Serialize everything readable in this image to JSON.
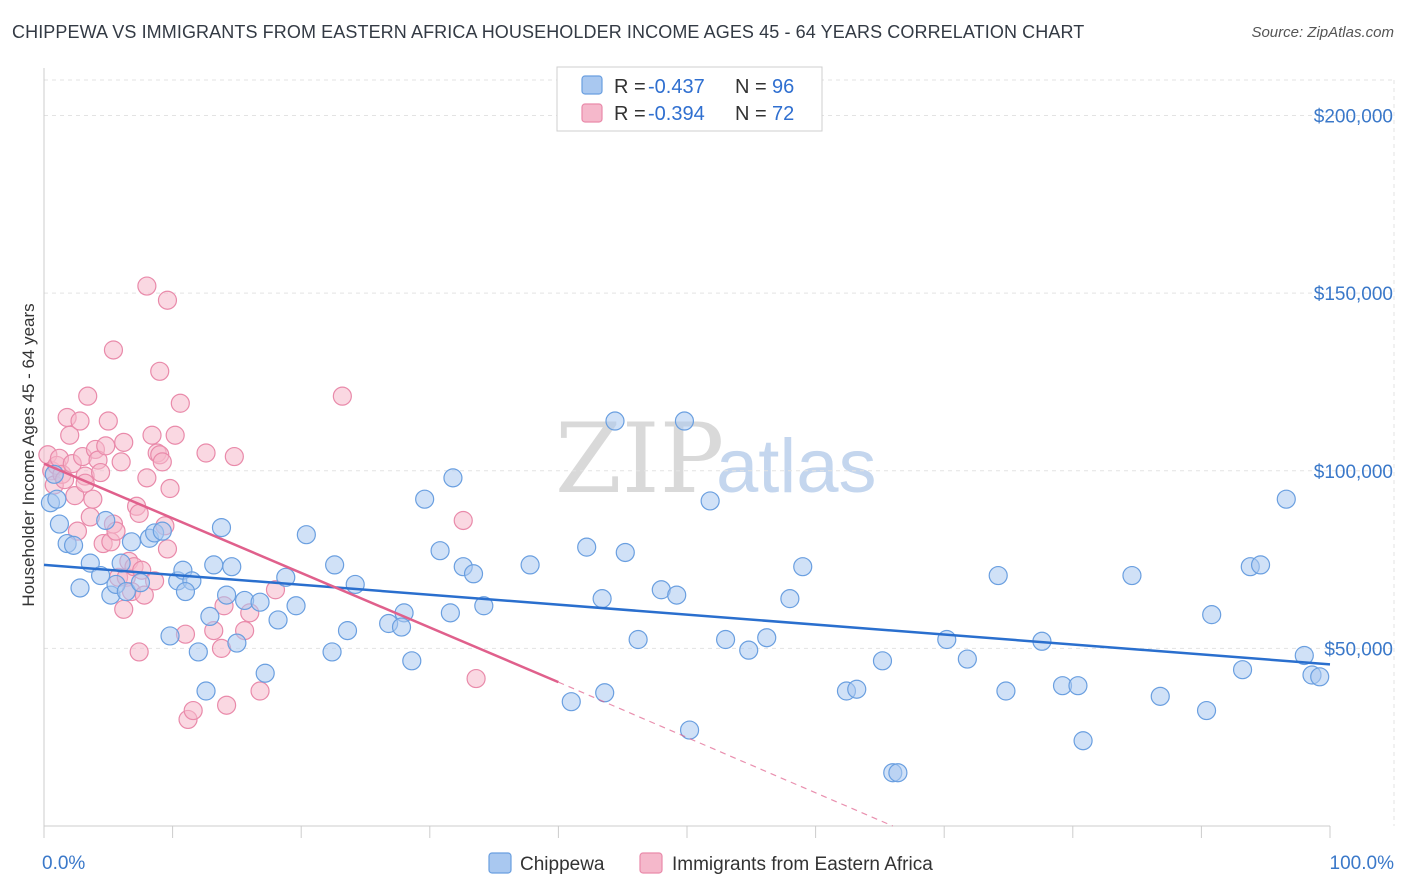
{
  "header": {
    "title": "CHIPPEWA VS IMMIGRANTS FROM EASTERN AFRICA HOUSEHOLDER INCOME AGES 45 - 64 YEARS CORRELATION CHART",
    "source": "Source: ZipAtlas.com"
  },
  "watermark": {
    "zip": "ZIP",
    "atlas": "atlas"
  },
  "legend": {
    "items": [
      {
        "r_label": "R = ",
        "r_value": "-0.437",
        "n_label": "N = ",
        "n_value": "96"
      },
      {
        "r_label": "R = ",
        "r_value": "-0.394",
        "n_label": "N = ",
        "n_value": "72"
      }
    ]
  },
  "bottom_legend": {
    "items": [
      {
        "label": "Chippewa"
      },
      {
        "label": "Immigrants from Eastern Africa"
      }
    ]
  },
  "colors": {
    "blue_fill": "#a9c8f0",
    "blue_stroke": "#6a9fe0",
    "blue_line": "#2a6fce",
    "pink_fill": "#f5b8cb",
    "pink_stroke": "#e98aaa",
    "pink_line": "#e0608c",
    "tick_text": "#3a78c9"
  },
  "chart_data": {
    "type": "scatter",
    "title": "CHIPPEWA VS IMMIGRANTS FROM EASTERN AFRICA HOUSEHOLDER INCOME AGES 45 - 64 YEARS CORRELATION CHART",
    "xlabel": "",
    "ylabel": "Householder Income Ages 45 - 64 years",
    "xlim": [
      0,
      100
    ],
    "ylim": [
      0,
      210000
    ],
    "x_tick_labels": [
      "0.0%",
      "100.0%"
    ],
    "y_ticks": [
      {
        "value": 50000,
        "label": "$50,000"
      },
      {
        "value": 100000,
        "label": "$100,000"
      },
      {
        "value": 150000,
        "label": "$150,000"
      },
      {
        "value": 200000,
        "label": "$200,000"
      }
    ],
    "grid": true,
    "legend_position": "top-center",
    "series": [
      {
        "name": "Chippewa",
        "trend": {
          "x": [
            0,
            100
          ],
          "y": [
            73500,
            45500
          ],
          "dashed_from": null
        },
        "points": [
          [
            0.5,
            91000
          ],
          [
            1.2,
            85000
          ],
          [
            1.8,
            79500
          ],
          [
            2.3,
            79000
          ],
          [
            2.8,
            67000
          ],
          [
            3.6,
            74000
          ],
          [
            4.4,
            70500
          ],
          [
            4.8,
            86000
          ],
          [
            5.2,
            65000
          ],
          [
            5.6,
            68000
          ],
          [
            6.0,
            74000
          ],
          [
            6.4,
            66000
          ],
          [
            6.8,
            80000
          ],
          [
            7.5,
            68500
          ],
          [
            8.2,
            81000
          ],
          [
            8.6,
            82500
          ],
          [
            9.2,
            83000
          ],
          [
            9.8,
            53500
          ],
          [
            10.4,
            69000
          ],
          [
            10.8,
            72000
          ],
          [
            11.5,
            69000
          ],
          [
            12.0,
            49000
          ],
          [
            12.6,
            38000
          ],
          [
            12.9,
            59000
          ],
          [
            13.2,
            73500
          ],
          [
            13.8,
            84000
          ],
          [
            14.2,
            65000
          ],
          [
            14.6,
            73000
          ],
          [
            15.0,
            51500
          ],
          [
            15.6,
            63500
          ],
          [
            16.8,
            63000
          ],
          [
            17.2,
            43000
          ],
          [
            18.2,
            58000
          ],
          [
            18.8,
            70000
          ],
          [
            19.6,
            62000
          ],
          [
            20.4,
            82000
          ],
          [
            22.6,
            73500
          ],
          [
            22.4,
            49000
          ],
          [
            23.6,
            55000
          ],
          [
            24.2,
            68000
          ],
          [
            26.8,
            57000
          ],
          [
            28.0,
            60000
          ],
          [
            27.8,
            56000
          ],
          [
            28.6,
            46500
          ],
          [
            29.6,
            92000
          ],
          [
            30.8,
            77500
          ],
          [
            31.6,
            60000
          ],
          [
            31.8,
            98000
          ],
          [
            32.6,
            73000
          ],
          [
            33.4,
            71000
          ],
          [
            34.2,
            62000
          ],
          [
            37.8,
            73500
          ],
          [
            41.0,
            35000
          ],
          [
            42.2,
            78500
          ],
          [
            43.6,
            37500
          ],
          [
            43.4,
            64000
          ],
          [
            44.4,
            114000
          ],
          [
            45.2,
            77000
          ],
          [
            46.2,
            52500
          ],
          [
            48.0,
            66500
          ],
          [
            49.2,
            65000
          ],
          [
            49.8,
            114000
          ],
          [
            50.2,
            27000
          ],
          [
            51.8,
            91500
          ],
          [
            53.0,
            52500
          ],
          [
            54.8,
            49500
          ],
          [
            56.2,
            53000
          ],
          [
            58.0,
            64000
          ],
          [
            59.0,
            73000
          ],
          [
            62.4,
            38000
          ],
          [
            63.2,
            38500
          ],
          [
            65.2,
            46500
          ],
          [
            66.0,
            15000
          ],
          [
            66.4,
            15000
          ],
          [
            70.2,
            52500
          ],
          [
            71.8,
            47000
          ],
          [
            74.2,
            70500
          ],
          [
            74.8,
            38000
          ],
          [
            77.6,
            52000
          ],
          [
            79.2,
            39500
          ],
          [
            80.4,
            39500
          ],
          [
            80.8,
            24000
          ],
          [
            84.6,
            70500
          ],
          [
            86.8,
            36500
          ],
          [
            90.4,
            32500
          ],
          [
            90.8,
            59500
          ],
          [
            93.2,
            44000
          ],
          [
            93.8,
            73000
          ],
          [
            94.6,
            73500
          ],
          [
            96.6,
            92000
          ],
          [
            98.0,
            48000
          ],
          [
            98.6,
            42500
          ],
          [
            99.2,
            42000
          ],
          [
            1.0,
            92000
          ],
          [
            0.8,
            99000
          ],
          [
            11.0,
            66000
          ]
        ]
      },
      {
        "name": "Immigrants from Eastern Africa",
        "trend": {
          "x": [
            0,
            40,
            66
          ],
          "y": [
            102000,
            40500,
            0
          ],
          "dashed_from": 40
        },
        "points": [
          [
            0.3,
            104500
          ],
          [
            0.6,
            100000
          ],
          [
            0.8,
            96000
          ],
          [
            1.0,
            101500
          ],
          [
            1.2,
            103500
          ],
          [
            1.4,
            99000
          ],
          [
            1.6,
            97500
          ],
          [
            1.8,
            115000
          ],
          [
            2.0,
            110000
          ],
          [
            2.2,
            102000
          ],
          [
            2.4,
            93000
          ],
          [
            2.6,
            83000
          ],
          [
            2.8,
            114000
          ],
          [
            3.0,
            104000
          ],
          [
            3.2,
            98500
          ],
          [
            3.4,
            121000
          ],
          [
            3.6,
            87000
          ],
          [
            3.8,
            92000
          ],
          [
            4.0,
            106000
          ],
          [
            4.2,
            103000
          ],
          [
            4.4,
            99500
          ],
          [
            4.6,
            79500
          ],
          [
            4.8,
            107000
          ],
          [
            5.0,
            114000
          ],
          [
            5.2,
            80000
          ],
          [
            5.4,
            85000
          ],
          [
            5.6,
            83000
          ],
          [
            5.8,
            70000
          ],
          [
            6.0,
            102500
          ],
          [
            6.2,
            108000
          ],
          [
            6.4,
            70000
          ],
          [
            6.6,
            74500
          ],
          [
            6.8,
            66000
          ],
          [
            7.0,
            73000
          ],
          [
            7.2,
            90000
          ],
          [
            7.4,
            88000
          ],
          [
            7.6,
            72000
          ],
          [
            7.8,
            65000
          ],
          [
            8.0,
            98000
          ],
          [
            8.4,
            110000
          ],
          [
            8.6,
            69000
          ],
          [
            8.8,
            105000
          ],
          [
            9.0,
            104500
          ],
          [
            9.2,
            102500
          ],
          [
            9.4,
            84500
          ],
          [
            9.6,
            78000
          ],
          [
            9.8,
            95000
          ],
          [
            10.2,
            110000
          ],
          [
            10.6,
            119000
          ],
          [
            11.2,
            30000
          ],
          [
            11.6,
            32500
          ],
          [
            12.6,
            105000
          ],
          [
            13.2,
            55000
          ],
          [
            13.8,
            50000
          ],
          [
            14.2,
            34000
          ],
          [
            14.8,
            104000
          ],
          [
            15.6,
            55000
          ],
          [
            16.8,
            38000
          ],
          [
            18.0,
            66500
          ],
          [
            23.2,
            121000
          ],
          [
            32.6,
            86000
          ],
          [
            33.6,
            41500
          ],
          [
            6.2,
            61000
          ],
          [
            7.4,
            49000
          ],
          [
            8.0,
            152000
          ],
          [
            9.6,
            148000
          ],
          [
            9.0,
            128000
          ],
          [
            5.4,
            134000
          ],
          [
            11.0,
            54000
          ],
          [
            14.0,
            62000
          ],
          [
            16.0,
            60000
          ],
          [
            3.2,
            96500
          ]
        ]
      }
    ]
  }
}
